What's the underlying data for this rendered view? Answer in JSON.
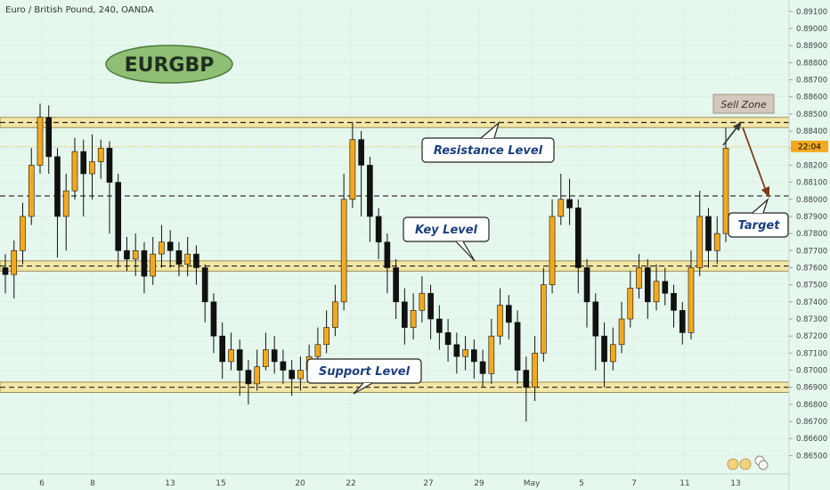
{
  "header": {
    "title": "Euro / British Pound, 240, OANDA"
  },
  "badge": {
    "symbol": "EURGBP"
  },
  "price_label": {
    "text": "22:04"
  },
  "chart_data": {
    "type": "candlestick",
    "ylim": [
      0.8645,
      0.8912
    ],
    "y_ticks": [
      "0.89100",
      "0.89000",
      "0.88900",
      "0.88800",
      "0.88700",
      "0.88600",
      "0.88500",
      "0.88400",
      "0.88300",
      "0.88200",
      "0.88100",
      "0.88000",
      "0.87900",
      "0.87800",
      "0.87700",
      "0.87600",
      "0.87500",
      "0.87400",
      "0.87300",
      "0.87200",
      "0.87100",
      "0.87000",
      "0.86900",
      "0.86800",
      "0.86700",
      "0.86600",
      "0.86500"
    ],
    "y_tick_values": [
      0.891,
      0.89,
      0.889,
      0.888,
      0.887,
      0.886,
      0.885,
      0.884,
      0.883,
      0.882,
      0.881,
      0.88,
      0.879,
      0.878,
      0.877,
      0.876,
      0.875,
      0.874,
      0.873,
      0.872,
      0.871,
      0.87,
      0.869,
      0.868,
      0.867,
      0.866,
      0.865
    ],
    "x_ticks": [
      "6",
      "8",
      "13",
      "15",
      "20",
      "22",
      "27",
      "29",
      "May",
      "5",
      "7",
      "11",
      "13"
    ],
    "zones": [
      {
        "name": "resistance",
        "low": 0.8842,
        "high": 0.8848,
        "mid": 0.8845
      },
      {
        "name": "key",
        "low": 0.8758,
        "high": 0.8764,
        "mid": 0.8761
      },
      {
        "name": "support",
        "low": 0.8687,
        "high": 0.8693,
        "mid": 0.869
      }
    ],
    "target_line": 0.8802,
    "current_price": 0.8831,
    "annotations": [
      {
        "name": "resistance-callout",
        "text": "Resistance Level"
      },
      {
        "name": "key-callout",
        "text": "Key Level"
      },
      {
        "name": "support-callout",
        "text": "Support Level"
      },
      {
        "name": "target-callout",
        "text": "Target"
      },
      {
        "name": "sell-zone-label",
        "text": "Sell Zone"
      }
    ],
    "candles": [
      [
        0.876,
        0.8756,
        0.8768,
        0.8745
      ],
      [
        0.8756,
        0.877,
        0.8776,
        0.8742
      ],
      [
        0.877,
        0.879,
        0.8798,
        0.8762
      ],
      [
        0.879,
        0.882,
        0.883,
        0.8785
      ],
      [
        0.882,
        0.8848,
        0.8856,
        0.8815
      ],
      [
        0.8848,
        0.8825,
        0.8855,
        0.8815
      ],
      [
        0.8825,
        0.879,
        0.883,
        0.8766
      ],
      [
        0.879,
        0.8805,
        0.8815,
        0.877
      ],
      [
        0.8805,
        0.8828,
        0.8836,
        0.88
      ],
      [
        0.8828,
        0.8815,
        0.8835,
        0.879
      ],
      [
        0.8815,
        0.8822,
        0.8838,
        0.88
      ],
      [
        0.8822,
        0.883,
        0.8835,
        0.8812
      ],
      [
        0.883,
        0.881,
        0.8834,
        0.878
      ],
      [
        0.881,
        0.877,
        0.8815,
        0.876
      ],
      [
        0.877,
        0.8765,
        0.8778,
        0.8758
      ],
      [
        0.8765,
        0.877,
        0.878,
        0.8755
      ],
      [
        0.877,
        0.8755,
        0.8775,
        0.8745
      ],
      [
        0.8755,
        0.8768,
        0.8778,
        0.875
      ],
      [
        0.8768,
        0.8775,
        0.8785,
        0.876
      ],
      [
        0.8775,
        0.877,
        0.8782,
        0.876
      ],
      [
        0.877,
        0.8762,
        0.8775,
        0.8755
      ],
      [
        0.8762,
        0.8768,
        0.8778,
        0.8755
      ],
      [
        0.8768,
        0.876,
        0.8773,
        0.875
      ],
      [
        0.876,
        0.874,
        0.8762,
        0.8728
      ],
      [
        0.874,
        0.872,
        0.8745,
        0.871
      ],
      [
        0.872,
        0.8705,
        0.8728,
        0.8695
      ],
      [
        0.8705,
        0.8712,
        0.8722,
        0.87
      ],
      [
        0.8712,
        0.87,
        0.8718,
        0.8685
      ],
      [
        0.87,
        0.8692,
        0.8706,
        0.868
      ],
      [
        0.8692,
        0.8702,
        0.8712,
        0.8688
      ],
      [
        0.8702,
        0.8712,
        0.8722,
        0.87
      ],
      [
        0.8712,
        0.8705,
        0.872,
        0.8698
      ],
      [
        0.8705,
        0.87,
        0.8712,
        0.8692
      ],
      [
        0.87,
        0.8695,
        0.8706,
        0.8685
      ],
      [
        0.8695,
        0.87,
        0.8708,
        0.8688
      ],
      [
        0.87,
        0.8708,
        0.8715,
        0.8696
      ],
      [
        0.8708,
        0.8715,
        0.8725,
        0.8702
      ],
      [
        0.8715,
        0.8725,
        0.8735,
        0.871
      ],
      [
        0.8725,
        0.874,
        0.875,
        0.872
      ],
      [
        0.874,
        0.88,
        0.8815,
        0.8735
      ],
      [
        0.88,
        0.8835,
        0.8845,
        0.8795
      ],
      [
        0.8835,
        0.882,
        0.884,
        0.879
      ],
      [
        0.882,
        0.879,
        0.8825,
        0.8775
      ],
      [
        0.879,
        0.8775,
        0.8795,
        0.8765
      ],
      [
        0.8775,
        0.876,
        0.878,
        0.8745
      ],
      [
        0.876,
        0.874,
        0.8765,
        0.873
      ],
      [
        0.874,
        0.8725,
        0.8748,
        0.8715
      ],
      [
        0.8725,
        0.8735,
        0.8745,
        0.8718
      ],
      [
        0.8735,
        0.8745,
        0.8755,
        0.8728
      ],
      [
        0.8745,
        0.873,
        0.875,
        0.8718
      ],
      [
        0.873,
        0.8722,
        0.8738,
        0.8712
      ],
      [
        0.8722,
        0.8715,
        0.873,
        0.8705
      ],
      [
        0.8715,
        0.8708,
        0.8722,
        0.8698
      ],
      [
        0.8708,
        0.8712,
        0.872,
        0.87
      ],
      [
        0.8712,
        0.8705,
        0.8718,
        0.8695
      ],
      [
        0.8705,
        0.8698,
        0.8712,
        0.869
      ],
      [
        0.8698,
        0.872,
        0.873,
        0.8692
      ],
      [
        0.872,
        0.8738,
        0.8748,
        0.8715
      ],
      [
        0.8738,
        0.8728,
        0.8744,
        0.8718
      ],
      [
        0.8728,
        0.87,
        0.8735,
        0.8692
      ],
      [
        0.87,
        0.869,
        0.8708,
        0.867
      ],
      [
        0.869,
        0.871,
        0.872,
        0.8682
      ],
      [
        0.871,
        0.875,
        0.876,
        0.8705
      ],
      [
        0.875,
        0.879,
        0.88,
        0.8745
      ],
      [
        0.879,
        0.88,
        0.8815,
        0.8785
      ],
      [
        0.88,
        0.8795,
        0.8812,
        0.8785
      ],
      [
        0.8795,
        0.876,
        0.88,
        0.8745
      ],
      [
        0.876,
        0.874,
        0.8765,
        0.8725
      ],
      [
        0.874,
        0.872,
        0.8745,
        0.87
      ],
      [
        0.872,
        0.8705,
        0.8728,
        0.869
      ],
      [
        0.8705,
        0.8715,
        0.8725,
        0.87
      ],
      [
        0.8715,
        0.873,
        0.874,
        0.871
      ],
      [
        0.873,
        0.8748,
        0.8758,
        0.8725
      ],
      [
        0.8748,
        0.876,
        0.8768,
        0.8742
      ],
      [
        0.876,
        0.874,
        0.8765,
        0.873
      ],
      [
        0.874,
        0.8752,
        0.8762,
        0.8735
      ],
      [
        0.8752,
        0.8745,
        0.876,
        0.8738
      ],
      [
        0.8745,
        0.8735,
        0.875,
        0.8725
      ],
      [
        0.8735,
        0.8722,
        0.874,
        0.8715
      ],
      [
        0.8722,
        0.876,
        0.877,
        0.8718
      ],
      [
        0.876,
        0.879,
        0.8805,
        0.8755
      ],
      [
        0.879,
        0.877,
        0.8795,
        0.876
      ],
      [
        0.877,
        0.878,
        0.879,
        0.8762
      ],
      [
        0.878,
        0.883,
        0.8842,
        0.8775
      ]
    ]
  }
}
